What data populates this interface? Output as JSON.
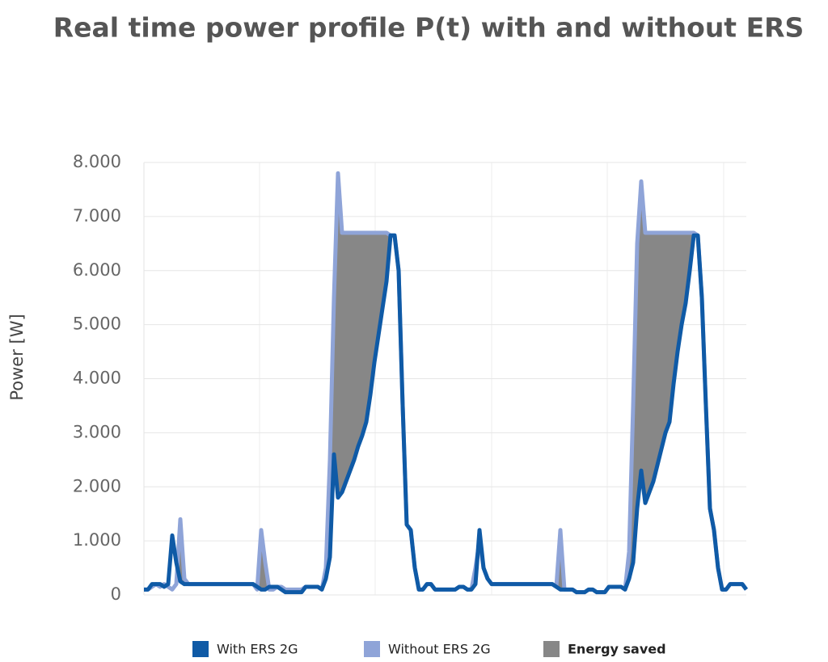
{
  "chart_data": {
    "type": "line",
    "title": "Real time power profile P(t) with and without ERS",
    "y_label": "Power [W]",
    "categories": [
      null,
      null,
      null,
      null,
      null,
      null,
      null,
      null,
      null,
      null,
      null,
      null,
      null,
      null,
      null,
      null,
      null,
      null,
      null,
      null,
      null,
      null,
      null,
      null,
      null,
      null,
      null,
      null,
      null,
      null,
      null,
      null,
      null,
      null,
      null,
      null,
      null,
      null,
      null,
      null,
      null,
      null,
      null,
      null,
      null,
      null,
      null,
      null,
      null,
      null,
      null,
      null,
      null,
      null,
      null,
      null,
      null,
      null,
      null,
      null,
      null,
      null,
      null,
      null,
      null,
      null,
      null,
      null,
      null,
      null,
      null,
      null,
      null,
      null,
      null,
      null,
      null,
      null,
      null,
      null,
      null,
      null,
      null,
      null,
      null,
      null,
      null,
      null,
      null,
      null,
      null,
      null,
      null,
      null,
      null,
      null,
      null,
      null,
      null,
      null,
      null,
      null,
      null,
      null,
      null,
      null,
      null,
      null,
      null,
      null,
      null,
      null,
      null,
      null,
      null,
      null,
      null,
      null,
      null,
      null,
      null,
      null,
      null,
      null,
      null,
      null,
      null,
      null,
      null,
      null,
      null,
      null,
      null,
      null,
      null,
      null,
      null,
      null,
      null,
      null,
      null,
      null,
      null,
      null,
      null,
      null,
      null,
      null,
      null,
      null
    ],
    "series": [
      {
        "name": "With ERS 2G",
        "color": "#0f5aa6",
        "values": [
          100,
          100,
          200,
          200,
          200,
          150,
          200,
          1100,
          600,
          250,
          200,
          200,
          200,
          200,
          200,
          200,
          200,
          200,
          200,
          200,
          200,
          200,
          200,
          200,
          200,
          200,
          200,
          200,
          150,
          100,
          100,
          150,
          150,
          150,
          100,
          50,
          50,
          50,
          50,
          50,
          150,
          150,
          150,
          150,
          100,
          300,
          700,
          2600,
          1800,
          1900,
          2100,
          2300,
          2500,
          2750,
          2950,
          3200,
          3700,
          4300,
          4800,
          5300,
          5800,
          6650,
          6650,
          6000,
          3500,
          1300,
          1200,
          500,
          100,
          100,
          200,
          200,
          100,
          100,
          100,
          100,
          100,
          100,
          150,
          150,
          100,
          100,
          200,
          1200,
          500,
          300,
          200,
          200,
          200,
          200,
          200,
          200,
          200,
          200,
          200,
          200,
          200,
          200,
          200,
          200,
          200,
          200,
          150,
          100,
          100,
          100,
          100,
          50,
          50,
          50,
          100,
          100,
          50,
          50,
          50,
          150,
          150,
          150,
          150,
          100,
          300,
          600,
          1600,
          2300,
          1700,
          1900,
          2100,
          2400,
          2700,
          3000,
          3200,
          3900,
          4500,
          5000,
          5400,
          6000,
          6650,
          6650,
          5500,
          3500,
          1600,
          1200,
          500,
          100,
          100,
          200,
          200,
          200,
          200,
          100
        ]
      },
      {
        "name": "Without ERS 2G",
        "color": "#8fa4d8",
        "values": [
          100,
          100,
          150,
          200,
          150,
          200,
          150,
          100,
          200,
          1400,
          300,
          200,
          200,
          200,
          200,
          200,
          200,
          200,
          200,
          200,
          200,
          200,
          200,
          200,
          200,
          200,
          200,
          200,
          100,
          1200,
          600,
          100,
          100,
          150,
          150,
          100,
          100,
          100,
          100,
          100,
          150,
          150,
          150,
          150,
          100,
          500,
          2500,
          5500,
          7800,
          6700,
          6700,
          6700,
          6700,
          6700,
          6700,
          6700,
          6700,
          6700,
          6700,
          6700,
          6700,
          6650,
          6650,
          6000,
          3500,
          1300,
          1200,
          500,
          100,
          100,
          200,
          200,
          100,
          100,
          100,
          100,
          100,
          100,
          150,
          150,
          100,
          100,
          500,
          1000,
          500,
          300,
          200,
          200,
          200,
          200,
          200,
          200,
          200,
          200,
          200,
          200,
          200,
          200,
          200,
          200,
          200,
          200,
          150,
          1200,
          100,
          100,
          100,
          50,
          50,
          50,
          100,
          100,
          50,
          50,
          50,
          150,
          150,
          150,
          150,
          100,
          800,
          3500,
          6500,
          7650,
          6700,
          6700,
          6700,
          6700,
          6700,
          6700,
          6700,
          6700,
          6700,
          6700,
          6700,
          6700,
          6700,
          6650,
          5500,
          3500,
          1600,
          1200,
          500,
          100,
          100,
          200,
          200,
          200,
          200,
          100
        ]
      }
    ],
    "fill_between": {
      "name": "Energy saved",
      "color": "#878787"
    },
    "ylim": [
      0,
      8000
    ],
    "yticks": [
      0,
      {
        "value": 1000,
        "label": "1.000"
      },
      {
        "value": 2000,
        "label": "2.000"
      },
      {
        "value": 3000,
        "label": "3.000"
      },
      {
        "value": 4000,
        "label": "4.000"
      },
      {
        "value": 5000,
        "label": "5.000"
      },
      {
        "value": 6000,
        "label": "6.000"
      },
      {
        "value": 7000,
        "label": "7.000"
      },
      {
        "value": 8000,
        "label": "8.000"
      }
    ],
    "grid": true,
    "legend": "bottom"
  }
}
